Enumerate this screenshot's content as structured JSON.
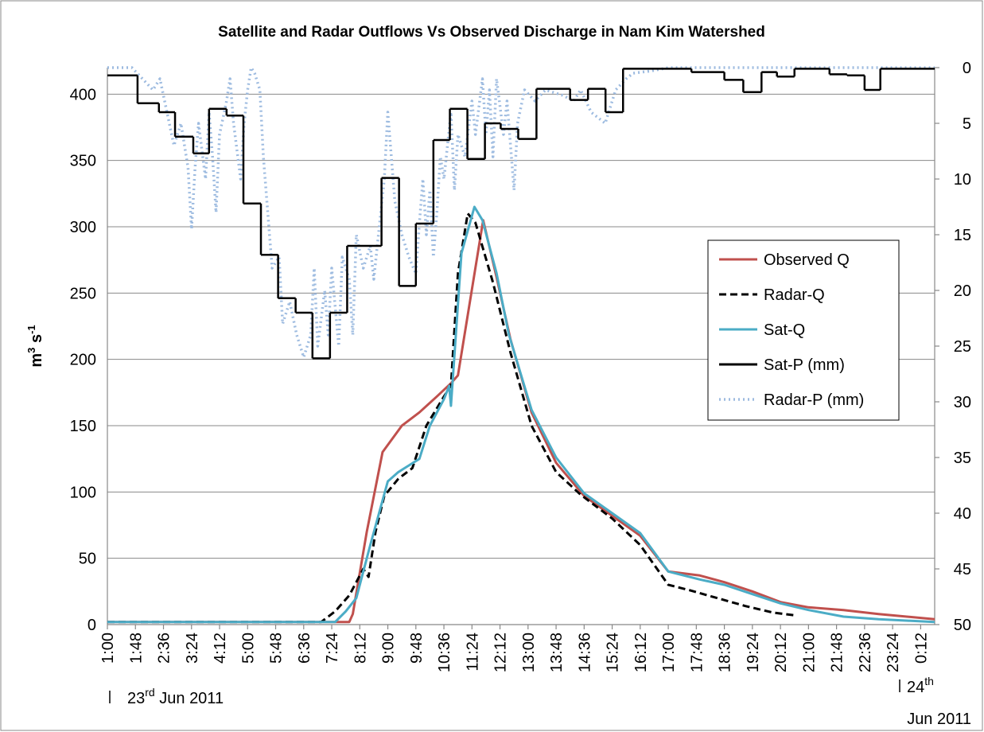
{
  "chart_data": {
    "type": "line",
    "title": "Satellite and Radar Outflows Vs Observed Discharge in Nam Kim Watershed",
    "y_label": {
      "base": "m",
      "sup": "3",
      "base2": " s",
      "sup2": "-1"
    },
    "xlim": [
      1,
      24.6
    ],
    "xticks": [
      {
        "value": 1,
        "label": "1:00"
      },
      {
        "value": 1.8,
        "label": "1:48"
      },
      {
        "value": 2.6,
        "label": "2:36"
      },
      {
        "value": 3.4,
        "label": "3:24"
      },
      {
        "value": 4.2,
        "label": "4:12"
      },
      {
        "value": 5,
        "label": "5:00"
      },
      {
        "value": 5.8,
        "label": "5:48"
      },
      {
        "value": 6.6,
        "label": "6:36"
      },
      {
        "value": 7.4,
        "label": "7:24"
      },
      {
        "value": 8.2,
        "label": "8:12"
      },
      {
        "value": 9,
        "label": "9:00"
      },
      {
        "value": 9.8,
        "label": "9:48"
      },
      {
        "value": 10.6,
        "label": "10:36"
      },
      {
        "value": 11.4,
        "label": "11:24"
      },
      {
        "value": 12.2,
        "label": "12:12"
      },
      {
        "value": 13,
        "label": "13:00"
      },
      {
        "value": 13.8,
        "label": "13:48"
      },
      {
        "value": 14.6,
        "label": "14:36"
      },
      {
        "value": 15.4,
        "label": "15:24"
      },
      {
        "value": 16.2,
        "label": "16:12"
      },
      {
        "value": 17,
        "label": "17:00"
      },
      {
        "value": 17.8,
        "label": "17:48"
      },
      {
        "value": 18.6,
        "label": "18:36"
      },
      {
        "value": 19.4,
        "label": "19:24"
      },
      {
        "value": 20.2,
        "label": "20:12"
      },
      {
        "value": 21,
        "label": "21:00"
      },
      {
        "value": 21.8,
        "label": "21:48"
      },
      {
        "value": 22.6,
        "label": "22:36"
      },
      {
        "value": 23.4,
        "label": "23:24"
      },
      {
        "value": 24.2,
        "label": "0:12"
      }
    ],
    "ylim": [
      0,
      420
    ],
    "yticks": [
      0,
      50,
      100,
      150,
      200,
      250,
      300,
      350,
      400
    ],
    "y2lim": [
      50,
      0
    ],
    "y2ticks": [
      0,
      5,
      10,
      15,
      20,
      25,
      30,
      35,
      40,
      45,
      50
    ],
    "grid": true,
    "legend": "right",
    "annotations": [
      {
        "text": "23",
        "sup": "rd",
        "after": " Jun 2011"
      },
      {
        "text": "24",
        "sup": "th"
      },
      {
        "text": "Jun 2011"
      }
    ],
    "series": [
      {
        "name": "Observed Q",
        "color": "#c0504d",
        "dash": "solid",
        "x": [
          1,
          7.9,
          8.0,
          8.4,
          8.85,
          9.4,
          9.9,
          10.4,
          10.8,
          11.0,
          11.72,
          12.1,
          12.5,
          13.1,
          13.8,
          14.6,
          15.4,
          16.2,
          17.0,
          17.9,
          18.6,
          19.4,
          20.2,
          21.0,
          22.0,
          23.0,
          24.6
        ],
        "values": [
          2,
          2,
          8,
          70,
          130,
          150,
          160,
          172,
          182,
          188,
          305,
          262,
          215,
          160,
          122,
          97,
          82,
          67,
          40,
          37,
          32,
          25,
          17,
          13,
          11,
          8,
          4
        ]
      },
      {
        "name": "Radar-Q",
        "color": "#000000",
        "dash": "dashed",
        "x": [
          1,
          7.1,
          7.5,
          7.9,
          8.3,
          8.45,
          8.65,
          8.9,
          9.3,
          9.7,
          10.1,
          10.6,
          10.8,
          11.0,
          11.28,
          11.5,
          12.0,
          12.5,
          13.1,
          13.8,
          14.5,
          15.4,
          16.2,
          17.0,
          17.6,
          18.4,
          19.2,
          20.0,
          20.6
        ],
        "values": [
          2,
          2,
          10,
          22,
          42,
          36,
          70,
          97,
          110,
          118,
          150,
          172,
          180,
          265,
          310,
          303,
          258,
          205,
          150,
          115,
          98,
          80,
          60,
          30,
          26,
          20,
          14,
          9,
          7
        ]
      },
      {
        "name": "Sat-Q",
        "color": "#4bacc6",
        "dash": "solid",
        "x": [
          1,
          7.5,
          7.8,
          8.1,
          8.5,
          9.0,
          9.3,
          9.6,
          9.9,
          10.2,
          10.6,
          10.75,
          10.8,
          11.1,
          11.47,
          11.7,
          12.1,
          12.45,
          13.1,
          13.8,
          14.6,
          15.4,
          16.2,
          17.0,
          17.9,
          18.6,
          19.4,
          20.2,
          21.0,
          22.0,
          23.0,
          24.6
        ],
        "values": [
          2,
          2,
          10,
          20,
          60,
          108,
          115,
          120,
          125,
          150,
          170,
          180,
          165,
          280,
          315,
          305,
          265,
          219,
          162,
          126,
          99,
          84,
          69,
          40,
          34,
          30,
          23,
          16,
          11,
          6,
          4,
          2
        ]
      },
      {
        "name": "Sat-P (mm)",
        "color": "#000000",
        "dash": "solid",
        "axis": "y2",
        "step": true,
        "x": [
          1,
          1.86,
          2.47,
          2.93,
          3.45,
          3.9,
          4.4,
          4.88,
          5.38,
          5.87,
          6.37,
          6.85,
          7.35,
          7.84,
          8.82,
          9.32,
          9.8,
          10.3,
          10.77,
          11.27,
          11.77,
          12.22,
          12.72,
          13.24,
          14.2,
          14.71,
          15.21,
          15.71,
          17.66,
          18.6,
          19.14,
          19.66,
          20.1,
          20.6,
          21.6,
          22.1,
          22.6,
          23.05
        ],
        "values": [
          0.7,
          3.2,
          4,
          6.2,
          7.7,
          3.7,
          4.3,
          12.2,
          16.8,
          20.7,
          22,
          26.1,
          22,
          16,
          9.9,
          19.6,
          14,
          6.5,
          3.7,
          8.2,
          5,
          5.5,
          6.4,
          1.9,
          2.9,
          1.9,
          4,
          0.1,
          0.4,
          1.1,
          2.2,
          0.4,
          0.8,
          0.1,
          0.6,
          0.7,
          2,
          0.1
        ]
      },
      {
        "name": "Radar-P (mm)",
        "color": "#9dbbe0",
        "dash": "dotted",
        "axis": "y2",
        "x": [
          1,
          1.7,
          2.0,
          2.3,
          2.5,
          2.7,
          2.9,
          3.1,
          3.3,
          3.4,
          3.5,
          3.6,
          3.8,
          3.9,
          4.0,
          4.1,
          4.2,
          4.4,
          4.5,
          4.6,
          4.8,
          4.9,
          5.0,
          5.1,
          5.2,
          5.35,
          5.45,
          5.6,
          5.7,
          5.9,
          6.0,
          6.2,
          6.4,
          6.6,
          6.8,
          6.9,
          7.0,
          7.2,
          7.3,
          7.4,
          7.6,
          7.7,
          7.9,
          8.0,
          8.1,
          8.3,
          8.5,
          8.6,
          8.7,
          8.9,
          9.0,
          9.2,
          9.4,
          9.6,
          9.8,
          9.9,
          10.0,
          10.1,
          10.2,
          10.3,
          10.4,
          10.5,
          10.6,
          10.8,
          10.9,
          11.0,
          11.2,
          11.4,
          11.5,
          11.7,
          11.8,
          11.9,
          12.0,
          12.1,
          12.3,
          12.4,
          12.6,
          12.7,
          12.9,
          13.2,
          13.5,
          14.0,
          14.3,
          14.5,
          14.8,
          15.2,
          15.5,
          15.8,
          16.0,
          16.5,
          17,
          18,
          19,
          20,
          24.6
        ],
        "values": [
          0,
          0,
          1,
          2,
          1,
          4,
          7,
          5,
          9,
          14.5,
          9,
          5,
          10,
          4,
          8,
          13,
          6,
          3,
          1,
          5,
          10,
          5,
          2,
          0,
          0.5,
          2,
          8,
          14,
          18,
          17,
          23,
          21,
          24,
          26,
          24,
          18,
          25,
          20,
          24,
          18,
          25,
          17,
          19,
          24,
          15,
          18,
          16,
          19,
          16,
          10,
          4,
          12,
          15,
          17,
          18.5,
          14,
          10,
          15,
          11,
          17,
          13,
          8,
          10,
          4,
          11,
          6,
          8,
          3,
          6,
          1,
          6,
          2,
          8,
          1,
          6,
          3,
          11,
          5,
          2,
          3,
          2,
          2.5,
          3,
          2,
          4,
          5,
          2,
          1,
          0.5,
          0.3,
          0,
          0,
          0,
          0,
          0
        ]
      }
    ]
  }
}
